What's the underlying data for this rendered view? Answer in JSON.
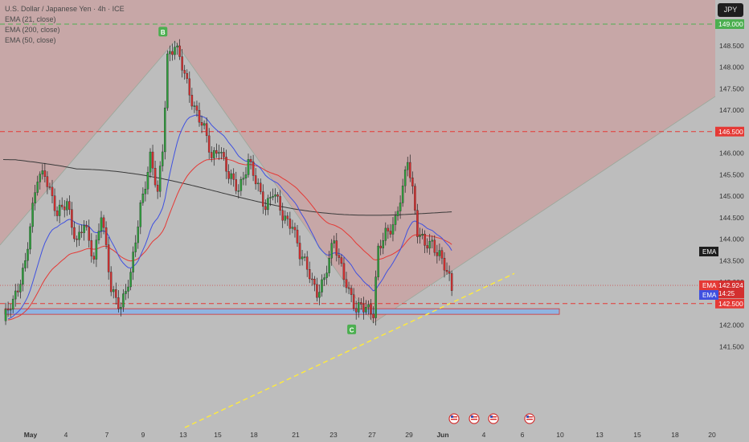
{
  "header": {
    "title": "U.S. Dollar / Japanese Yen · 4h · ICE",
    "currency_button": "JPY",
    "indicators": [
      "EMA (21, close)",
      "EMA (200, close)",
      "EMA (50, close)"
    ]
  },
  "chart_data": {
    "type": "candlestick",
    "title": "U.S. Dollar / Japanese Yen · 4h · ICE",
    "x_tick_labels": [
      "May",
      "4",
      "7",
      "9",
      "13",
      "15",
      "18",
      "21",
      "23",
      "27",
      "29",
      "Jun",
      "4",
      "6",
      "10",
      "13",
      "15",
      "18",
      "20"
    ],
    "y_axis": {
      "ticks": [
        141.5,
        142.0,
        142.5,
        143.0,
        143.5,
        144.0,
        144.5,
        145.0,
        145.5,
        146.0,
        146.5,
        147.0,
        147.5,
        148.0,
        148.5,
        149.0
      ],
      "tick_labels": [
        "141.500",
        "142.000",
        "142.500",
        "143.000",
        "143.500",
        "144.000",
        "144.500",
        "145.000",
        "145.500",
        "146.000",
        "146.500",
        "147.000",
        "147.500",
        "148.000",
        "148.500",
        "149.000"
      ],
      "range": [
        141.3,
        149.5
      ]
    },
    "horizontal_levels": [
      {
        "value": 149.0,
        "label": "149.000",
        "style": "dashed",
        "color": "#4caf50"
      },
      {
        "value": 146.5,
        "label": "146.500",
        "style": "dashed",
        "color": "#e53935"
      },
      {
        "value": 142.5,
        "label": "142.500",
        "style": "dashed",
        "color": "#e53935"
      }
    ],
    "support_zone": {
      "from": 142.25,
      "to": 142.38,
      "color": "#90b4e0"
    },
    "pattern_points": [
      {
        "label": "B",
        "value": 148.6,
        "color": "#4caf50"
      },
      {
        "label": "C",
        "value": 142.05,
        "color": "#4caf50"
      }
    ],
    "current_price": {
      "value": 142.924,
      "label": "142.924",
      "countdown": "14:25"
    },
    "ema_labels": [
      {
        "name": "EMA",
        "value": 144.7,
        "color": "#1e1e1e"
      },
      {
        "name": "EMA",
        "value": 144.0,
        "color": "#e53935"
      },
      {
        "name": "EMA",
        "value": 143.8,
        "color": "#3f51e0"
      }
    ],
    "event_flags": 4,
    "colors": {
      "up": "#2e9e3c",
      "down": "#d32f2f",
      "ema21": "#3f51e0",
      "ema50": "#e53935",
      "ema200": "#3a3a3a"
    },
    "anchors": [
      {
        "i": 0,
        "v": 142.1
      },
      {
        "i": 4,
        "v": 142.5
      },
      {
        "i": 9,
        "v": 143.5
      },
      {
        "i": 14,
        "v": 145.4
      },
      {
        "i": 17,
        "v": 145.6
      },
      {
        "i": 22,
        "v": 144.5
      },
      {
        "i": 26,
        "v": 144.9
      },
      {
        "i": 30,
        "v": 143.9
      },
      {
        "i": 33,
        "v": 144.3
      },
      {
        "i": 37,
        "v": 143.6
      },
      {
        "i": 40,
        "v": 144.6
      },
      {
        "i": 44,
        "v": 142.8
      },
      {
        "i": 48,
        "v": 142.5
      },
      {
        "i": 52,
        "v": 143.1
      },
      {
        "i": 56,
        "v": 144.8
      },
      {
        "i": 60,
        "v": 145.9
      },
      {
        "i": 63,
        "v": 145.0
      },
      {
        "i": 65,
        "v": 146.1
      },
      {
        "i": 67,
        "v": 148.3
      },
      {
        "i": 70,
        "v": 148.5
      },
      {
        "i": 74,
        "v": 147.8
      },
      {
        "i": 78,
        "v": 147.1
      },
      {
        "i": 82,
        "v": 146.5
      },
      {
        "i": 85,
        "v": 145.9
      },
      {
        "i": 88,
        "v": 146.2
      },
      {
        "i": 92,
        "v": 145.4
      },
      {
        "i": 96,
        "v": 145.2
      },
      {
        "i": 100,
        "v": 145.8
      },
      {
        "i": 103,
        "v": 145.3
      },
      {
        "i": 107,
        "v": 144.8
      },
      {
        "i": 110,
        "v": 145.1
      },
      {
        "i": 114,
        "v": 144.5
      },
      {
        "i": 118,
        "v": 144.4
      },
      {
        "i": 121,
        "v": 143.6
      },
      {
        "i": 125,
        "v": 143.2
      },
      {
        "i": 128,
        "v": 142.8
      },
      {
        "i": 131,
        "v": 143.0
      },
      {
        "i": 135,
        "v": 144.0
      },
      {
        "i": 138,
        "v": 143.4
      },
      {
        "i": 141,
        "v": 142.7
      },
      {
        "i": 144,
        "v": 142.3
      },
      {
        "i": 146,
        "v": 142.55
      },
      {
        "i": 149,
        "v": 142.4
      },
      {
        "i": 151,
        "v": 142.2
      },
      {
        "i": 153,
        "v": 143.7
      },
      {
        "i": 156,
        "v": 144.2
      },
      {
        "i": 160,
        "v": 144.4
      },
      {
        "i": 163,
        "v": 145.1
      },
      {
        "i": 165,
        "v": 145.9
      },
      {
        "i": 167,
        "v": 145.2
      },
      {
        "i": 169,
        "v": 144.2
      },
      {
        "i": 172,
        "v": 143.8
      },
      {
        "i": 175,
        "v": 143.9
      },
      {
        "i": 178,
        "v": 143.7
      },
      {
        "i": 181,
        "v": 143.2
      },
      {
        "i": 183,
        "v": 142.8
      }
    ]
  }
}
